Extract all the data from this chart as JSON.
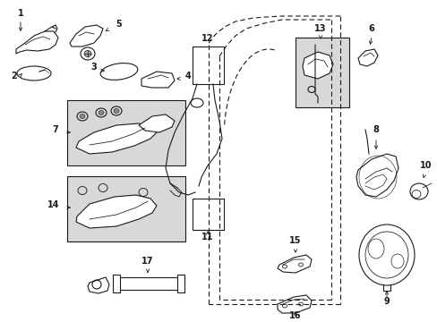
{
  "bg_color": "#ffffff",
  "line_color": "#1a1a1a",
  "box_fill": "#d8d8d8",
  "figsize": [
    4.89,
    3.6
  ],
  "dpi": 100
}
